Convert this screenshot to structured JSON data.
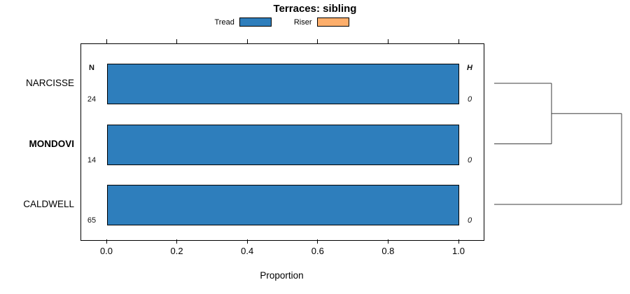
{
  "title": "Terraces: sibling",
  "legend": {
    "items": [
      {
        "label": "Tread",
        "color": "#2E7EBC"
      },
      {
        "label": "Riser",
        "color": "#FDAE6B"
      }
    ]
  },
  "chart_data": {
    "type": "bar",
    "orientation": "horizontal",
    "title": "Terraces: sibling",
    "categories": [
      {
        "label": "NARCISSE",
        "bold": false,
        "n": 24,
        "h": 0
      },
      {
        "label": "MONDOVI",
        "bold": true,
        "n": 14,
        "h": 0
      },
      {
        "label": "CALDWELL",
        "bold": false,
        "n": 65,
        "h": 0
      }
    ],
    "series": [
      {
        "name": "Tread",
        "color": "#2E7EBC",
        "values": [
          1.0,
          1.0,
          1.0
        ]
      },
      {
        "name": "Riser",
        "color": "#FDAE6B",
        "values": [
          0.0,
          0.0,
          0.0
        ]
      }
    ],
    "columns": {
      "n_header": "N",
      "h_header": "H"
    },
    "xlabel": "Proportion",
    "x_ticks": [
      "0.0",
      "0.2",
      "0.4",
      "0.6",
      "0.8",
      "1.0"
    ],
    "xlim": [
      0,
      1
    ],
    "grid": false,
    "legend_position": "top",
    "bar_border_color": "#000000",
    "dendrogram": {
      "leaves": [
        "NARCISSE",
        "MONDOVI",
        "CALDWELL"
      ],
      "merges": [
        {
          "clusters": [
            [
              "NARCISSE"
            ],
            [
              "MONDOVI"
            ]
          ],
          "height": 0.45
        },
        {
          "clusters": [
            [
              "NARCISSE",
              "MONDOVI"
            ],
            [
              "CALDWELL"
            ]
          ],
          "height": 1.0
        }
      ],
      "line_color": "#3c3c3c"
    }
  }
}
